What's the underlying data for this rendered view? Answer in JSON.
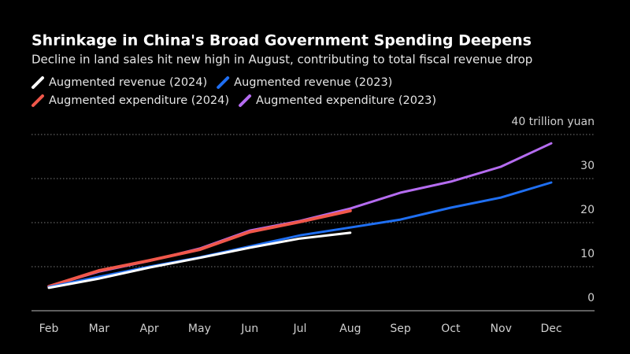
{
  "chart_data": {
    "type": "line",
    "title": "Shrinkage in China's Broad Government Spending Deepens",
    "subtitle": "Decline in land sales hit new high in August, contributing to total fiscal revenue drop",
    "categories": [
      "Feb",
      "Mar",
      "Apr",
      "May",
      "Jun",
      "Jul",
      "Aug",
      "Sep",
      "Oct",
      "Nov",
      "Dec"
    ],
    "series": [
      {
        "name": "Augmented revenue (2024)",
        "color": "#ffffff",
        "values": [
          5.2,
          7.3,
          9.8,
          12.0,
          14.3,
          16.4,
          17.7,
          null,
          null,
          null,
          null
        ]
      },
      {
        "name": "Augmented revenue (2023)",
        "color": "#1f6ff2",
        "values": [
          5.4,
          7.7,
          10.0,
          12.1,
          14.6,
          17.1,
          18.9,
          20.7,
          23.4,
          25.7,
          29.1
        ]
      },
      {
        "name": "Augmented expenditure (2024)",
        "color": "#f0574a",
        "values": [
          5.5,
          9.1,
          11.4,
          13.9,
          17.9,
          20.2,
          22.7,
          null,
          null,
          null,
          null
        ]
      },
      {
        "name": "Augmented expenditure (2023)",
        "color": "#b56cf0",
        "values": [
          5.5,
          8.9,
          11.3,
          14.1,
          18.2,
          20.4,
          23.2,
          26.8,
          29.3,
          32.7,
          38.0
        ]
      }
    ],
    "ylim": [
      0,
      40
    ],
    "yticks": [
      0,
      10,
      20,
      30,
      {
        "value": 40,
        "label": "40 trillion yuan"
      }
    ],
    "grid": true
  }
}
